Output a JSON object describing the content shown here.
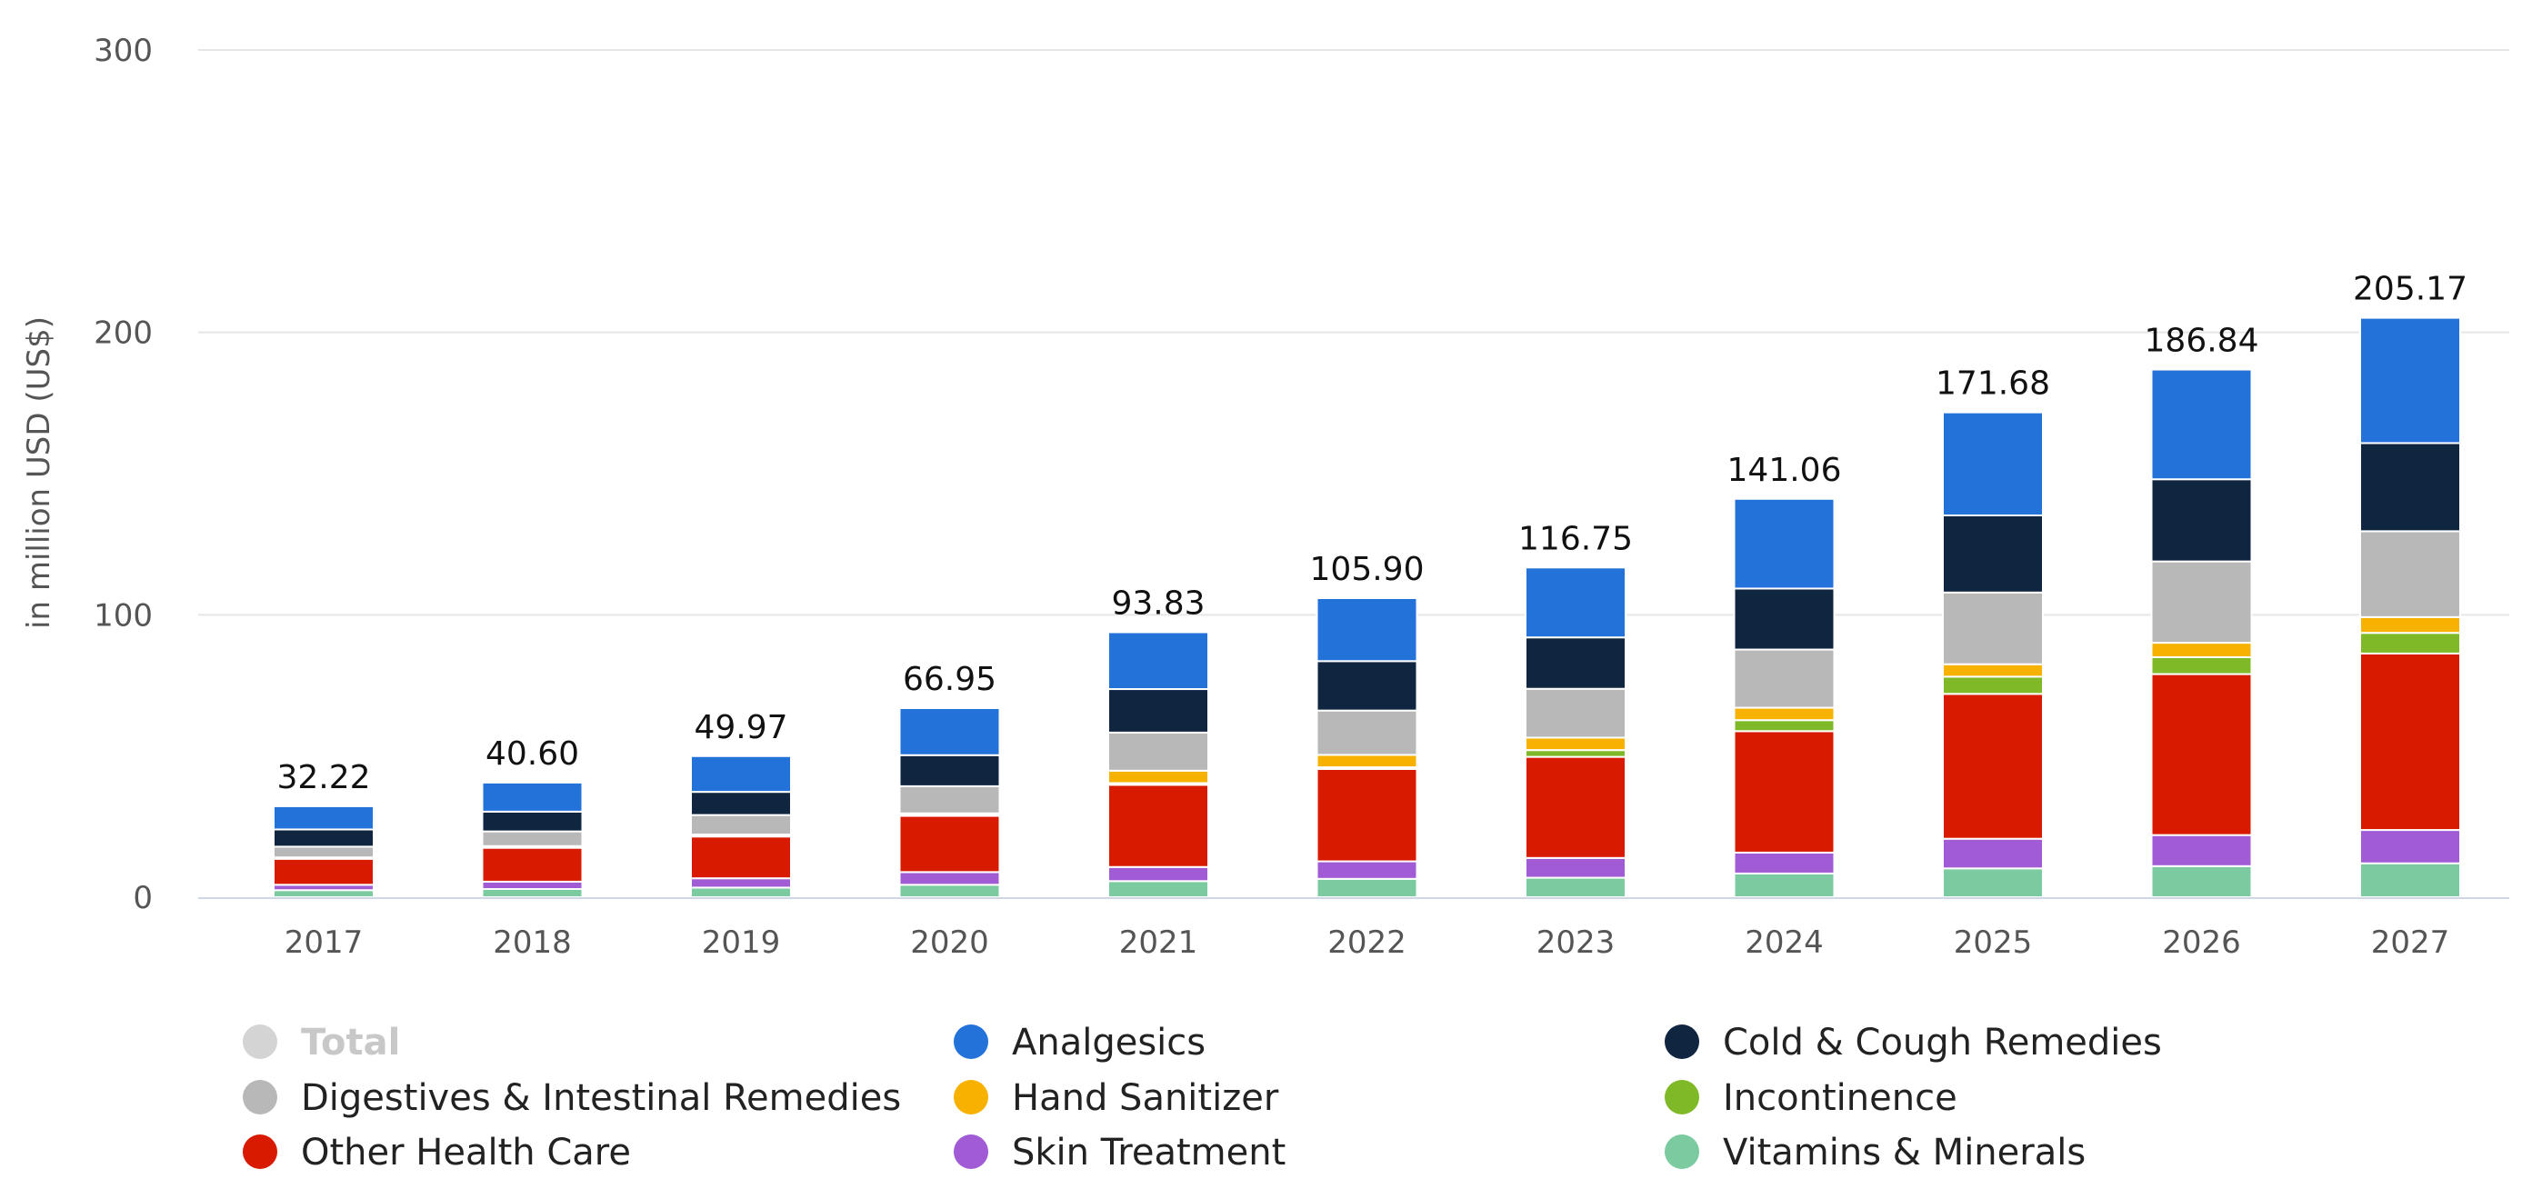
{
  "chart_data": {
    "type": "bar",
    "stacked": true,
    "title": "",
    "xlabel": "",
    "ylabel": "in million USD (US$)",
    "ylim": [
      0,
      300
    ],
    "yticks": [
      0,
      100,
      200,
      300
    ],
    "grid": true,
    "legend_position": "bottom",
    "categories": [
      "2017",
      "2018",
      "2019",
      "2020",
      "2021",
      "2022",
      "2023",
      "2024",
      "2025",
      "2026",
      "2027"
    ],
    "totals": [
      32.22,
      40.6,
      49.97,
      66.95,
      93.83,
      105.9,
      116.75,
      141.06,
      171.68,
      186.84,
      205.17
    ],
    "total_labels": [
      "32.22",
      "40.60",
      "49.97",
      "66.95",
      "93.83",
      "105.90",
      "116.75",
      "141.06",
      "171.68",
      "186.84",
      "205.17"
    ],
    "series": [
      {
        "name": "Vitamins & Minerals",
        "color": "#7ccba0",
        "values": [
          2.5,
          2.9,
          3.4,
          4.4,
          5.7,
          6.5,
          6.9,
          8.4,
          10.2,
          11.0,
          12.0
        ]
      },
      {
        "name": "Skin Treatment",
        "color": "#a05bd5",
        "values": [
          1.9,
          2.6,
          3.3,
          4.5,
          5.0,
          6.2,
          7.0,
          7.4,
          10.5,
          11.0,
          11.8
        ]
      },
      {
        "name": "Other Health Care",
        "color": "#d81b00",
        "values": [
          9.2,
          12.0,
          14.8,
          19.9,
          29.1,
          32.7,
          35.8,
          43.0,
          51.3,
          57.0,
          62.5
        ]
      },
      {
        "name": "Incontinence",
        "color": "#80b927",
        "values": [
          0.2,
          0.3,
          0.3,
          0.4,
          0.6,
          0.6,
          2.4,
          3.9,
          6.1,
          6.0,
          7.3
        ]
      },
      {
        "name": "Hand Sanitizer",
        "color": "#f7b100",
        "values": [
          0.3,
          0.3,
          0.4,
          0.5,
          4.4,
          4.4,
          4.4,
          4.4,
          4.4,
          5.1,
          5.6
        ]
      },
      {
        "name": "Digestives & Intestinal Remedies",
        "color": "#b8b8b8",
        "values": [
          3.8,
          5.2,
          6.9,
          9.6,
          13.5,
          15.7,
          17.3,
          20.6,
          25.4,
          28.8,
          30.4
        ]
      },
      {
        "name": "Cold & Cough Remedies",
        "color": "#0f2540",
        "values": [
          6.1,
          7.0,
          8.2,
          11.0,
          15.4,
          17.5,
          18.2,
          21.6,
          27.3,
          29.1,
          31.2
        ]
      },
      {
        "name": "Analgesics",
        "color": "#2372d9",
        "values": [
          8.22,
          10.3,
          12.67,
          16.65,
          20.13,
          22.3,
          24.75,
          31.76,
          36.48,
          38.84,
          44.37
        ]
      }
    ],
    "legend": [
      {
        "name": "Total",
        "color": "#d4d4d4",
        "disabled": true
      },
      {
        "name": "Analgesics",
        "color": "#2372d9"
      },
      {
        "name": "Cold & Cough Remedies",
        "color": "#0f2540"
      },
      {
        "name": "Digestives & Intestinal Remedies",
        "color": "#b8b8b8"
      },
      {
        "name": "Hand Sanitizer",
        "color": "#f7b100"
      },
      {
        "name": "Incontinence",
        "color": "#80b927"
      },
      {
        "name": "Other Health Care",
        "color": "#d81b00"
      },
      {
        "name": "Skin Treatment",
        "color": "#a05bd5"
      },
      {
        "name": "Vitamins & Minerals",
        "color": "#7ccba0"
      }
    ],
    "colors": {
      "grid": "#e6e6e6",
      "axis": "#cfd6e6"
    }
  }
}
